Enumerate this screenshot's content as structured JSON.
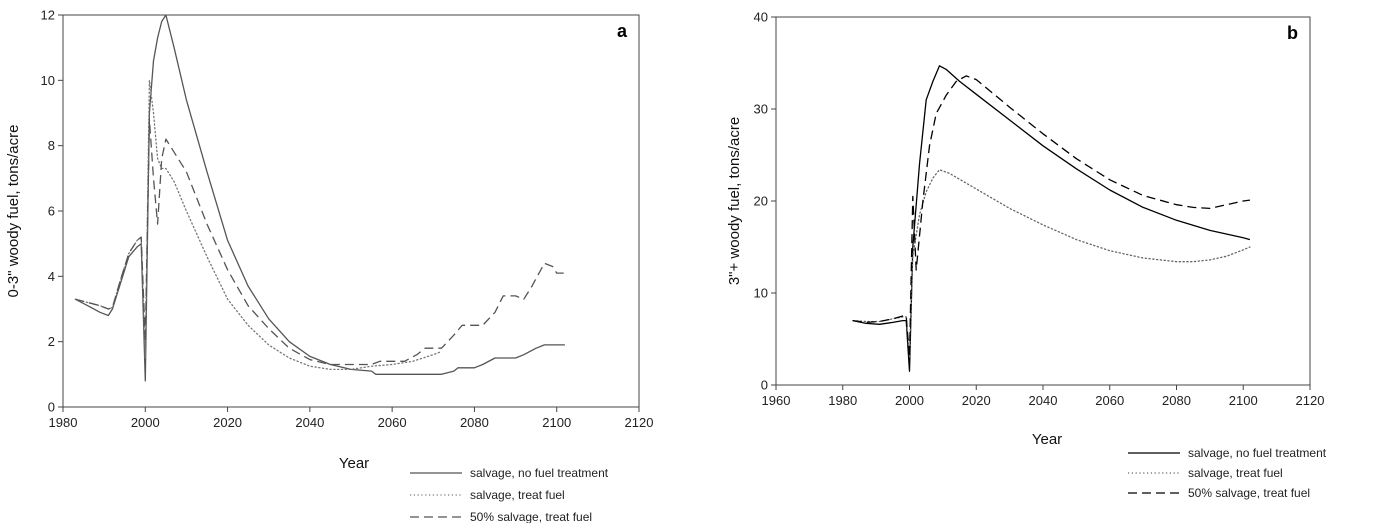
{
  "chart_data": [
    {
      "type": "line",
      "panel_label": "a",
      "xlabel": "Year",
      "ylabel": "0-3\" woody fuel, tons/acre",
      "xlim": [
        1980,
        2120
      ],
      "ylim": [
        0,
        12
      ],
      "xticks": [
        1980,
        2000,
        2020,
        2040,
        2060,
        2080,
        2100,
        2120
      ],
      "yticks": [
        0,
        2,
        4,
        6,
        8,
        10,
        12
      ],
      "legend_position": "bottom-right, outside plot",
      "series": [
        {
          "name": "salvage, no fuel treatment",
          "style": "solid",
          "color": "#555555",
          "points": [
            [
              1983,
              3.3
            ],
            [
              1986,
              3.1
            ],
            [
              1989,
              2.9
            ],
            [
              1991,
              2.8
            ],
            [
              1992,
              3.0
            ],
            [
              1994,
              3.8
            ],
            [
              1996,
              4.6
            ],
            [
              1998,
              4.9
            ],
            [
              1999,
              5.0
            ],
            [
              2000,
              0.8
            ],
            [
              2001,
              9.0
            ],
            [
              2002,
              10.6
            ],
            [
              2003,
              11.3
            ],
            [
              2004,
              11.8
            ],
            [
              2005,
              12.0
            ],
            [
              2007,
              11.0
            ],
            [
              2010,
              9.4
            ],
            [
              2015,
              7.2
            ],
            [
              2020,
              5.1
            ],
            [
              2025,
              3.7
            ],
            [
              2030,
              2.7
            ],
            [
              2035,
              2.0
            ],
            [
              2040,
              1.55
            ],
            [
              2045,
              1.3
            ],
            [
              2050,
              1.15
            ],
            [
              2055,
              1.1
            ],
            [
              2056,
              1.0
            ],
            [
              2060,
              1.0
            ],
            [
              2065,
              1.0
            ],
            [
              2070,
              1.0
            ],
            [
              2072,
              1.0
            ],
            [
              2075,
              1.1
            ],
            [
              2076,
              1.2
            ],
            [
              2080,
              1.2
            ],
            [
              2082,
              1.3
            ],
            [
              2085,
              1.5
            ],
            [
              2090,
              1.5
            ],
            [
              2092,
              1.6
            ],
            [
              2095,
              1.8
            ],
            [
              2097,
              1.9
            ],
            [
              2100,
              1.9
            ],
            [
              2102,
              1.9
            ]
          ]
        },
        {
          "name": "salvage, treat fuel",
          "style": "dotted",
          "color": "#777777",
          "points": [
            [
              1983,
              3.3
            ],
            [
              1986,
              3.2
            ],
            [
              1989,
              3.1
            ],
            [
              1991,
              3.0
            ],
            [
              1992,
              3.05
            ],
            [
              1994,
              3.9
            ],
            [
              1996,
              4.7
            ],
            [
              1998,
              5.1
            ],
            [
              1999,
              5.2
            ],
            [
              2000,
              1.5
            ],
            [
              2001,
              10.0
            ],
            [
              2002,
              9.0
            ],
            [
              2003,
              7.6
            ],
            [
              2004,
              7.3
            ],
            [
              2005,
              7.3
            ],
            [
              2007,
              6.9
            ],
            [
              2010,
              6.0
            ],
            [
              2015,
              4.6
            ],
            [
              2020,
              3.3
            ],
            [
              2025,
              2.5
            ],
            [
              2030,
              1.9
            ],
            [
              2035,
              1.5
            ],
            [
              2040,
              1.25
            ],
            [
              2045,
              1.15
            ],
            [
              2050,
              1.15
            ],
            [
              2055,
              1.25
            ],
            [
              2060,
              1.3
            ],
            [
              2065,
              1.4
            ],
            [
              2070,
              1.6
            ],
            [
              2072,
              1.7
            ]
          ]
        },
        {
          "name": "50% salvage, treat fuel",
          "style": "dashed",
          "color": "#555555",
          "points": [
            [
              1983,
              3.3
            ],
            [
              1986,
              3.2
            ],
            [
              1989,
              3.1
            ],
            [
              1991,
              3.0
            ],
            [
              1992,
              3.05
            ],
            [
              1994,
              3.9
            ],
            [
              1996,
              4.7
            ],
            [
              1998,
              5.1
            ],
            [
              1999,
              5.2
            ],
            [
              2000,
              2.0
            ],
            [
              2001,
              8.8
            ],
            [
              2002,
              7.0
            ],
            [
              2003,
              5.6
            ],
            [
              2004,
              7.6
            ],
            [
              2005,
              8.2
            ],
            [
              2007,
              7.8
            ],
            [
              2010,
              7.2
            ],
            [
              2015,
              5.6
            ],
            [
              2020,
              4.2
            ],
            [
              2025,
              3.1
            ],
            [
              2030,
              2.4
            ],
            [
              2035,
              1.8
            ],
            [
              2040,
              1.45
            ],
            [
              2045,
              1.3
            ],
            [
              2050,
              1.3
            ],
            [
              2055,
              1.3
            ],
            [
              2057,
              1.4
            ],
            [
              2060,
              1.4
            ],
            [
              2063,
              1.4
            ],
            [
              2066,
              1.6
            ],
            [
              2068,
              1.8
            ],
            [
              2072,
              1.8
            ],
            [
              2075,
              2.2
            ],
            [
              2077,
              2.5
            ],
            [
              2082,
              2.5
            ],
            [
              2085,
              2.9
            ],
            [
              2087,
              3.4
            ],
            [
              2090,
              3.4
            ],
            [
              2092,
              3.3
            ],
            [
              2094,
              3.7
            ],
            [
              2097,
              4.4
            ],
            [
              2099,
              4.3
            ],
            [
              2100,
              4.1
            ],
            [
              2102,
              4.1
            ]
          ]
        }
      ]
    },
    {
      "type": "line",
      "panel_label": "b",
      "xlabel": "Year",
      "ylabel": "3\"+ woody fuel, tons/acre",
      "xlim": [
        1960,
        2120
      ],
      "ylim": [
        0,
        40
      ],
      "xticks": [
        1960,
        1980,
        2000,
        2020,
        2040,
        2060,
        2080,
        2100,
        2120
      ],
      "yticks": [
        0,
        10,
        20,
        30,
        40
      ],
      "legend_position": "bottom-right, outside plot",
      "series": [
        {
          "name": "salvage, no fuel treatment",
          "style": "solid",
          "color": "#000000",
          "points": [
            [
              1983,
              7.0
            ],
            [
              1987,
              6.7
            ],
            [
              1991,
              6.6
            ],
            [
              1995,
              6.8
            ],
            [
              1998,
              7.0
            ],
            [
              1999,
              7.0
            ],
            [
              2000,
              1.5
            ],
            [
              2001,
              15
            ],
            [
              2003,
              24
            ],
            [
              2005,
              31
            ],
            [
              2007,
              33
            ],
            [
              2009,
              34.7
            ],
            [
              2011,
              34.3
            ],
            [
              2015,
              33.0
            ],
            [
              2020,
              31.6
            ],
            [
              2030,
              28.8
            ],
            [
              2040,
              26.0
            ],
            [
              2050,
              23.5
            ],
            [
              2060,
              21.2
            ],
            [
              2070,
              19.3
            ],
            [
              2080,
              17.9
            ],
            [
              2090,
              16.8
            ],
            [
              2100,
              16.0
            ],
            [
              2102,
              15.8
            ]
          ]
        },
        {
          "name": "salvage, treat fuel",
          "style": "dotted",
          "color": "#666666",
          "points": [
            [
              1983,
              7.0
            ],
            [
              1987,
              6.9
            ],
            [
              1991,
              6.9
            ],
            [
              1995,
              7.2
            ],
            [
              1998,
              7.4
            ],
            [
              1999,
              7.4
            ],
            [
              2000,
              3.0
            ],
            [
              2001,
              14
            ],
            [
              2003,
              18.5
            ],
            [
              2005,
              21
            ],
            [
              2007,
              22.5
            ],
            [
              2009,
              23.4
            ],
            [
              2012,
              23.0
            ],
            [
              2020,
              21.3
            ],
            [
              2030,
              19.2
            ],
            [
              2040,
              17.4
            ],
            [
              2050,
              15.8
            ],
            [
              2060,
              14.6
            ],
            [
              2070,
              13.8
            ],
            [
              2080,
              13.4
            ],
            [
              2085,
              13.4
            ],
            [
              2090,
              13.6
            ],
            [
              2095,
              14.0
            ],
            [
              2100,
              14.7
            ],
            [
              2102,
              15.0
            ]
          ]
        },
        {
          "name": "50% salvage, treat fuel",
          "style": "dashed",
          "color": "#000000",
          "points": [
            [
              1983,
              7.0
            ],
            [
              1987,
              6.8
            ],
            [
              1991,
              6.9
            ],
            [
              1995,
              7.2
            ],
            [
              1998,
              7.5
            ],
            [
              1999,
              7.5
            ],
            [
              2000,
              3.0
            ],
            [
              2001,
              20.5
            ],
            [
              2002,
              12.5
            ],
            [
              2004,
              20
            ],
            [
              2006,
              26
            ],
            [
              2008,
              29.5
            ],
            [
              2011,
              31.5
            ],
            [
              2014,
              33.0
            ],
            [
              2017,
              33.6
            ],
            [
              2020,
              33.2
            ],
            [
              2030,
              30.2
            ],
            [
              2040,
              27.3
            ],
            [
              2050,
              24.6
            ],
            [
              2060,
              22.3
            ],
            [
              2070,
              20.6
            ],
            [
              2080,
              19.6
            ],
            [
              2085,
              19.3
            ],
            [
              2090,
              19.2
            ],
            [
              2095,
              19.6
            ],
            [
              2100,
              20.0
            ],
            [
              2102,
              20.1
            ]
          ]
        }
      ]
    }
  ]
}
